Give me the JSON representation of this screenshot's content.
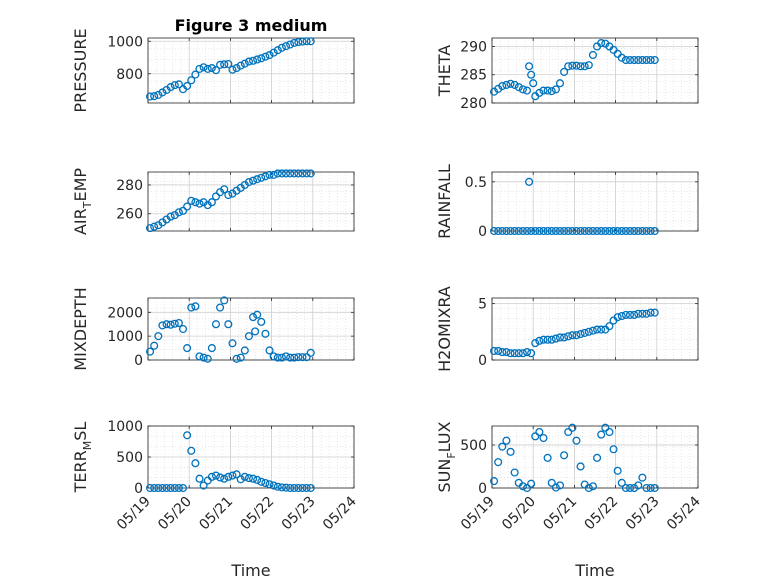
{
  "title": "Figure 3 medium",
  "xlabel": "Time",
  "x_ticks": [
    "05/19",
    "05/20",
    "05/21",
    "05/22",
    "05/23",
    "05/24"
  ],
  "marker_color": "#0072bd",
  "chart_data": [
    {
      "type": "scatter",
      "ylabel": "PRESSURE",
      "ylim": [
        620,
        1020
      ],
      "yticks": [
        {
          "v": 800,
          "label": "800"
        },
        {
          "v": 1000,
          "label": "1000"
        }
      ],
      "xlim": [
        0,
        5
      ],
      "grid": true,
      "x": [
        0.05,
        0.15,
        0.25,
        0.35,
        0.45,
        0.55,
        0.65,
        0.75,
        0.85,
        0.95,
        1.05,
        1.15,
        1.25,
        1.35,
        1.45,
        1.55,
        1.65,
        1.75,
        1.85,
        1.95,
        2.05,
        2.15,
        2.25,
        2.35,
        2.45,
        2.55,
        2.65,
        2.75,
        2.85,
        2.95,
        3.05,
        3.15,
        3.25,
        3.35,
        3.45,
        3.55,
        3.65,
        3.75,
        3.85,
        3.95
      ],
      "y": [
        660,
        662,
        670,
        685,
        700,
        718,
        730,
        735,
        705,
        725,
        760,
        795,
        830,
        840,
        830,
        835,
        822,
        855,
        858,
        860,
        825,
        835,
        850,
        862,
        875,
        880,
        888,
        895,
        905,
        915,
        930,
        945,
        960,
        970,
        980,
        990,
        995,
        998,
        1000,
        1000
      ]
    },
    {
      "type": "scatter",
      "ylabel": "THETA",
      "ylim": [
        280,
        291.5
      ],
      "yticks": [
        {
          "v": 280,
          "label": "280"
        },
        {
          "v": 285,
          "label": "285"
        },
        {
          "v": 290,
          "label": "290"
        }
      ],
      "xlim": [
        0,
        5
      ],
      "grid": true,
      "x": [
        0.05,
        0.15,
        0.25,
        0.35,
        0.45,
        0.55,
        0.65,
        0.75,
        0.85,
        0.9,
        0.95,
        1.0,
        1.05,
        1.15,
        1.25,
        1.35,
        1.45,
        1.55,
        1.65,
        1.75,
        1.85,
        1.95,
        2.05,
        2.15,
        2.25,
        2.35,
        2.45,
        2.55,
        2.65,
        2.75,
        2.85,
        2.95,
        3.05,
        3.15,
        3.25,
        3.35,
        3.45,
        3.55,
        3.65,
        3.75,
        3.85,
        3.95
      ],
      "y": [
        282,
        282.5,
        283,
        283.2,
        283.4,
        283.2,
        282.8,
        282.4,
        282.2,
        286.5,
        285,
        283.5,
        281.2,
        281.8,
        282.2,
        282.2,
        282.1,
        282.4,
        283.5,
        285.5,
        286.5,
        286.6,
        286.6,
        286.5,
        286.5,
        286.7,
        288.5,
        290,
        290.6,
        290.5,
        290,
        289.4,
        288.7,
        288,
        287.6,
        287.6,
        287.6,
        287.6,
        287.6,
        287.6,
        287.6,
        287.6
      ]
    },
    {
      "type": "scatter",
      "ylabel": "AIR_TEMP",
      "ylim": [
        248,
        289
      ],
      "yticks": [
        {
          "v": 260,
          "label": "260"
        },
        {
          "v": 280,
          "label": "280"
        }
      ],
      "xlim": [
        0,
        5
      ],
      "grid": true,
      "x": [
        0.05,
        0.15,
        0.25,
        0.35,
        0.45,
        0.55,
        0.65,
        0.75,
        0.85,
        0.95,
        1.05,
        1.15,
        1.25,
        1.35,
        1.45,
        1.55,
        1.65,
        1.75,
        1.85,
        1.95,
        2.05,
        2.15,
        2.25,
        2.35,
        2.45,
        2.55,
        2.65,
        2.75,
        2.85,
        2.95,
        3.05,
        3.15,
        3.25,
        3.35,
        3.45,
        3.55,
        3.65,
        3.75,
        3.85,
        3.95
      ],
      "y": [
        250,
        251,
        252,
        254,
        256,
        258,
        259,
        261,
        262,
        265,
        269,
        268,
        267,
        268,
        266,
        268,
        272,
        275,
        277,
        273,
        274,
        276,
        278,
        280,
        282,
        283,
        284,
        285,
        286,
        287,
        287,
        288,
        288,
        288,
        288,
        288,
        288,
        288,
        288,
        288
      ]
    },
    {
      "type": "scatter",
      "ylabel": "RAINFALL",
      "ylim": [
        0,
        0.6
      ],
      "yticks": [
        {
          "v": 0,
          "label": "0"
        },
        {
          "v": 0.5,
          "label": "0.5"
        }
      ],
      "xlim": [
        0,
        5
      ],
      "grid": true,
      "x": [
        0.05,
        0.15,
        0.25,
        0.35,
        0.45,
        0.55,
        0.65,
        0.75,
        0.85,
        0.95,
        1.05,
        1.15,
        1.25,
        1.35,
        1.45,
        1.55,
        1.65,
        1.75,
        1.85,
        1.95,
        2.05,
        2.15,
        2.25,
        2.35,
        2.45,
        2.55,
        2.65,
        2.75,
        2.85,
        2.95,
        3.05,
        3.15,
        3.25,
        3.35,
        3.45,
        3.55,
        3.65,
        3.75,
        3.85,
        3.95,
        0.9
      ],
      "y": [
        0,
        0,
        0,
        0,
        0,
        0,
        0,
        0,
        0,
        0,
        0,
        0,
        0,
        0,
        0,
        0,
        0,
        0,
        0,
        0,
        0,
        0,
        0,
        0,
        0,
        0,
        0,
        0,
        0,
        0,
        0,
        0,
        0,
        0,
        0,
        0,
        0,
        0,
        0,
        0,
        0.5
      ]
    },
    {
      "type": "scatter",
      "ylabel": "MIXDEPTH",
      "ylim": [
        0,
        2600
      ],
      "yticks": [
        {
          "v": 0,
          "label": "0"
        },
        {
          "v": 1000,
          "label": "1000"
        },
        {
          "v": 2000,
          "label": "2000"
        }
      ],
      "xlim": [
        0,
        5
      ],
      "grid": true,
      "x": [
        0.05,
        0.15,
        0.25,
        0.35,
        0.45,
        0.55,
        0.65,
        0.75,
        0.85,
        0.95,
        1.05,
        1.15,
        1.25,
        1.35,
        1.45,
        1.55,
        1.65,
        1.75,
        1.85,
        1.95,
        2.05,
        2.15,
        2.25,
        2.35,
        2.45,
        2.55,
        2.65,
        2.75,
        2.85,
        2.95,
        3.05,
        3.15,
        3.25,
        3.35,
        3.45,
        3.55,
        3.65,
        3.75,
        3.85,
        3.95,
        2.6
      ],
      "y": [
        350,
        600,
        1000,
        1450,
        1500,
        1480,
        1520,
        1550,
        1300,
        500,
        2200,
        2250,
        150,
        100,
        50,
        500,
        1500,
        2200,
        2500,
        1500,
        700,
        50,
        100,
        400,
        1000,
        1800,
        1900,
        1600,
        1100,
        400,
        150,
        100,
        100,
        150,
        100,
        100,
        120,
        120,
        120,
        300,
        1200
      ]
    },
    {
      "type": "scatter",
      "ylabel": "H2OMIXRA",
      "ylim": [
        0,
        5.5
      ],
      "yticks": [
        {
          "v": 0,
          "label": "0"
        },
        {
          "v": 5,
          "label": "5"
        }
      ],
      "xlim": [
        0,
        5
      ],
      "grid": true,
      "x": [
        0.05,
        0.15,
        0.25,
        0.35,
        0.45,
        0.55,
        0.65,
        0.75,
        0.85,
        0.95,
        1.05,
        1.15,
        1.25,
        1.35,
        1.45,
        1.55,
        1.65,
        1.75,
        1.85,
        1.95,
        2.05,
        2.15,
        2.25,
        2.35,
        2.45,
        2.55,
        2.65,
        2.75,
        2.85,
        2.95,
        3.05,
        3.15,
        3.25,
        3.35,
        3.45,
        3.55,
        3.65,
        3.75,
        3.85,
        3.95
      ],
      "y": [
        0.8,
        0.8,
        0.7,
        0.7,
        0.6,
        0.6,
        0.6,
        0.6,
        0.7,
        0.6,
        1.5,
        1.7,
        1.8,
        1.8,
        1.8,
        1.9,
        2.0,
        2.0,
        2.1,
        2.2,
        2.2,
        2.3,
        2.4,
        2.5,
        2.6,
        2.7,
        2.7,
        2.7,
        3.0,
        3.5,
        3.8,
        3.9,
        4.0,
        4.0,
        4.0,
        4.1,
        4.1,
        4.1,
        4.2,
        4.2
      ]
    },
    {
      "type": "scatter",
      "ylabel": "TERR_MSL",
      "ylim": [
        0,
        1000
      ],
      "yticks": [
        {
          "v": 0,
          "label": "0"
        },
        {
          "v": 500,
          "label": "500"
        },
        {
          "v": 1000,
          "label": "1000"
        }
      ],
      "xlim": [
        0,
        5
      ],
      "grid": true,
      "x": [
        0.05,
        0.15,
        0.25,
        0.35,
        0.45,
        0.55,
        0.65,
        0.75,
        0.85,
        0.95,
        1.05,
        1.15,
        1.25,
        1.35,
        1.45,
        1.55,
        1.65,
        1.75,
        1.85,
        1.95,
        2.05,
        2.15,
        2.25,
        2.35,
        2.45,
        2.55,
        2.65,
        2.75,
        2.85,
        2.95,
        3.05,
        3.15,
        3.25,
        3.35,
        3.45,
        3.55,
        3.65,
        3.75,
        3.85,
        3.95
      ],
      "y": [
        0,
        0,
        0,
        0,
        0,
        0,
        0,
        0,
        0,
        850,
        600,
        400,
        150,
        40,
        120,
        180,
        200,
        170,
        150,
        180,
        200,
        220,
        140,
        180,
        160,
        150,
        130,
        100,
        80,
        60,
        40,
        20,
        10,
        5,
        0,
        0,
        0,
        0,
        0,
        0
      ]
    },
    {
      "type": "scatter",
      "ylabel": "SUN_FLUX",
      "ylim": [
        0,
        720
      ],
      "yticks": [
        {
          "v": 0,
          "label": "0"
        },
        {
          "v": 500,
          "label": "500"
        }
      ],
      "xlim": [
        0,
        5
      ],
      "grid": true,
      "x": [
        0.05,
        0.15,
        0.25,
        0.35,
        0.45,
        0.55,
        0.65,
        0.75,
        0.85,
        0.95,
        1.05,
        1.15,
        1.25,
        1.35,
        1.45,
        1.55,
        1.65,
        1.75,
        1.85,
        1.95,
        2.05,
        2.15,
        2.25,
        2.35,
        2.45,
        2.55,
        2.65,
        2.75,
        2.85,
        2.95,
        3.05,
        3.15,
        3.25,
        3.35,
        3.45,
        3.55,
        3.65,
        3.75,
        3.85,
        3.95
      ],
      "y": [
        80,
        300,
        480,
        550,
        420,
        180,
        60,
        20,
        0,
        50,
        600,
        650,
        580,
        350,
        60,
        5,
        30,
        380,
        650,
        700,
        550,
        250,
        40,
        0,
        20,
        350,
        620,
        700,
        650,
        450,
        200,
        60,
        0,
        0,
        0,
        30,
        120,
        0,
        0,
        0
      ]
    }
  ]
}
